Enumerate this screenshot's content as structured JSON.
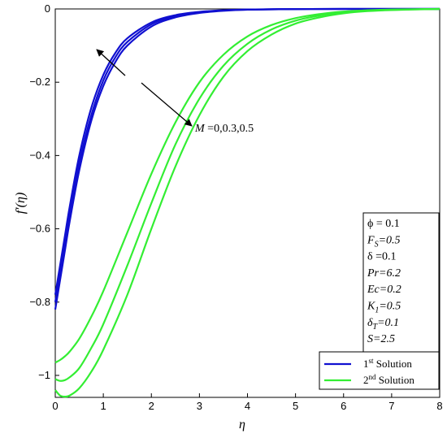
{
  "chart_data": {
    "type": "line",
    "xlabel": "η",
    "ylabel": "f′(η)",
    "xlim": [
      0,
      8
    ],
    "ylim": [
      -1.06,
      0
    ],
    "x_ticks": [
      "0",
      "1",
      "2",
      "3",
      "4",
      "5",
      "6",
      "7",
      "8"
    ],
    "y_ticks": [
      "0",
      "−0.2",
      "−0.4",
      "−0.6",
      "−0.8",
      "−1"
    ],
    "grid": false,
    "legend": {
      "position": "bottom-right",
      "entries": [
        {
          "main": "1",
          "sup": "st",
          "rest": " Solution",
          "color": "#1010d0"
        },
        {
          "main": "2",
          "sup": "nd",
          "rest": " Solution",
          "color": "#33ee33"
        }
      ]
    },
    "annotation": {
      "var": "M",
      "text": " =0,0.3,0.5"
    },
    "parameters": [
      {
        "text": "ϕ = 0.1",
        "italic": false
      },
      {
        "text": "F",
        "sub": "S",
        "rest": "=0.5",
        "italic": true
      },
      {
        "text": "δ =0.1",
        "italic": false
      },
      {
        "text": "Pr=6.2",
        "italic": true
      },
      {
        "text": "Ec=0.2",
        "italic": true
      },
      {
        "text": "K",
        "sub": "1",
        "rest": "=0.5",
        "italic": true
      },
      {
        "text": "δ",
        "sub": "T",
        "rest": "=0.1",
        "italic": true
      },
      {
        "text": "S=2.5",
        "italic": true
      }
    ],
    "series": [
      {
        "group": 1,
        "color": "#1010d0",
        "x": [
          0,
          0.05,
          0.1,
          0.2,
          0.3,
          0.5,
          0.75,
          1.0,
          1.25,
          1.5,
          2.0,
          2.5,
          3.0,
          3.5,
          4.0,
          5.0,
          6.0,
          8.0
        ],
        "y": [
          -0.82,
          -0.78,
          -0.74,
          -0.66,
          -0.58,
          -0.44,
          -0.305,
          -0.21,
          -0.145,
          -0.1,
          -0.048,
          -0.023,
          -0.011,
          -0.005,
          -0.002,
          -0.0005,
          0,
          0
        ]
      },
      {
        "group": 1,
        "color": "#1010d0",
        "x": [
          0,
          0.05,
          0.1,
          0.2,
          0.3,
          0.5,
          0.75,
          1.0,
          1.25,
          1.5,
          2.0,
          2.5,
          3.0,
          3.5,
          4.0,
          5.0,
          6.0,
          8.0
        ],
        "y": [
          -0.8,
          -0.76,
          -0.72,
          -0.64,
          -0.56,
          -0.42,
          -0.29,
          -0.195,
          -0.132,
          -0.09,
          -0.042,
          -0.02,
          -0.009,
          -0.004,
          -0.002,
          -0.0004,
          0,
          0
        ]
      },
      {
        "group": 1,
        "color": "#1010d0",
        "x": [
          0,
          0.05,
          0.1,
          0.2,
          0.3,
          0.5,
          0.75,
          1.0,
          1.25,
          1.5,
          2.0,
          2.5,
          3.0,
          3.5,
          4.0,
          5.0,
          6.0,
          8.0
        ],
        "y": [
          -0.78,
          -0.74,
          -0.7,
          -0.62,
          -0.54,
          -0.4,
          -0.27,
          -0.18,
          -0.12,
          -0.08,
          -0.037,
          -0.017,
          -0.008,
          -0.0035,
          -0.0015,
          -0.0003,
          0,
          0
        ]
      },
      {
        "group": 2,
        "color": "#33ee33",
        "x": [
          0,
          0.1,
          0.2,
          0.3,
          0.5,
          0.75,
          1.0,
          1.5,
          2.0,
          2.5,
          3.0,
          3.5,
          4.0,
          4.5,
          5.0,
          5.5,
          6.0,
          6.5,
          7.0,
          8.0
        ],
        "y": [
          -1.04,
          -1.055,
          -1.058,
          -1.055,
          -1.035,
          -0.99,
          -0.93,
          -0.78,
          -0.6,
          -0.43,
          -0.29,
          -0.185,
          -0.115,
          -0.07,
          -0.04,
          -0.023,
          -0.012,
          -0.006,
          -0.003,
          0
        ]
      },
      {
        "group": 2,
        "color": "#33ee33",
        "x": [
          0,
          0.1,
          0.2,
          0.3,
          0.5,
          0.75,
          1.0,
          1.5,
          2.0,
          2.5,
          3.0,
          3.5,
          4.0,
          4.5,
          5.0,
          5.5,
          6.0,
          6.5,
          7.0,
          8.0
        ],
        "y": [
          -1.01,
          -1.015,
          -1.013,
          -1.005,
          -0.98,
          -0.925,
          -0.86,
          -0.7,
          -0.53,
          -0.37,
          -0.245,
          -0.155,
          -0.095,
          -0.056,
          -0.032,
          -0.018,
          -0.01,
          -0.005,
          -0.0025,
          0
        ]
      },
      {
        "group": 2,
        "color": "#33ee33",
        "x": [
          0,
          0.1,
          0.2,
          0.3,
          0.5,
          0.75,
          1.0,
          1.5,
          2.0,
          2.5,
          3.0,
          3.5,
          4.0,
          4.5,
          5.0,
          5.5,
          6.0,
          6.5,
          7.0,
          8.0
        ],
        "y": [
          -0.965,
          -0.958,
          -0.948,
          -0.935,
          -0.9,
          -0.84,
          -0.77,
          -0.61,
          -0.45,
          -0.31,
          -0.2,
          -0.125,
          -0.075,
          -0.044,
          -0.025,
          -0.014,
          -0.007,
          -0.0035,
          -0.0015,
          0
        ]
      }
    ]
  }
}
